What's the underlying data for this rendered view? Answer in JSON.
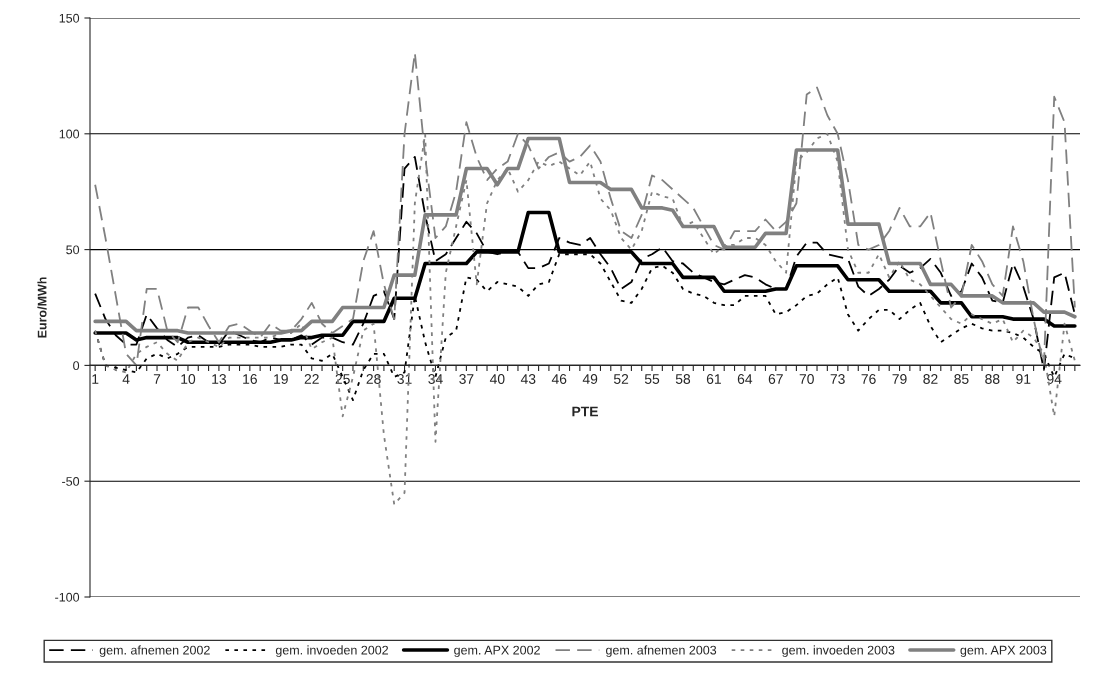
{
  "chart_data": {
    "type": "line",
    "xlabel": "PTE",
    "ylabel": "Euro/MWh",
    "categories": [
      "1",
      null,
      null,
      "4",
      null,
      null,
      "7",
      null,
      null,
      "10",
      null,
      null,
      "13",
      null,
      null,
      "16",
      null,
      null,
      "19",
      null,
      null,
      "22",
      null,
      null,
      "25",
      null,
      null,
      "28",
      null,
      null,
      "31",
      null,
      null,
      "34",
      null,
      null,
      "37",
      null,
      null,
      "40",
      null,
      null,
      "43",
      null,
      null,
      "46",
      null,
      null,
      "49",
      null,
      null,
      "52",
      null,
      null,
      "55",
      null,
      null,
      "58",
      null,
      null,
      "61",
      null,
      null,
      "64",
      null,
      null,
      "67",
      null,
      null,
      "70",
      null,
      null,
      "73",
      null,
      null,
      "76",
      null,
      null,
      "79",
      null,
      null,
      "82",
      null,
      null,
      "85",
      null,
      null,
      "88",
      null,
      null,
      "91",
      null,
      null,
      "94",
      null,
      null
    ],
    "ylim": [
      -100,
      150
    ],
    "yticks": [
      -100,
      -50,
      0,
      50,
      100,
      150
    ],
    "grid": "y",
    "legend": "bottom",
    "marker": "none",
    "series": [
      {
        "name": "gem. afnemen 2002",
        "color": "#000000",
        "line_style": "dashed",
        "values": [
          31,
          20,
          13,
          9,
          9,
          22,
          16,
          11,
          8,
          12,
          13,
          10,
          9,
          15,
          13,
          11,
          10,
          12,
          11,
          11,
          13,
          9,
          12,
          12,
          10,
          9,
          18,
          30,
          32,
          20,
          85,
          90,
          65,
          45,
          48,
          55,
          62,
          57,
          49,
          48,
          49,
          49,
          42,
          42,
          44,
          55,
          53,
          52,
          55,
          48,
          42,
          33,
          36,
          46,
          48,
          51,
          45,
          44,
          40,
          38,
          36,
          35,
          37,
          39,
          38,
          35,
          33,
          33,
          47,
          53,
          53,
          48,
          47,
          46,
          34,
          30,
          33,
          37,
          43,
          40,
          42,
          46,
          40,
          30,
          32,
          44,
          38,
          28,
          27,
          44,
          34,
          20,
          -2,
          38,
          40,
          22
        ]
      },
      {
        "name": "gem. invoeden 2002",
        "color": "#000000",
        "line_style": "dotted",
        "values": [
          15,
          0,
          -1,
          -2,
          -3,
          3,
          5,
          3,
          5,
          8,
          8,
          8,
          8,
          9,
          9,
          9,
          8,
          8,
          8,
          9,
          9,
          3,
          2,
          5,
          -5,
          -15,
          -2,
          5,
          5,
          -5,
          -3,
          30,
          10,
          -5,
          12,
          15,
          38,
          37,
          32,
          36,
          35,
          34,
          30,
          35,
          36,
          48,
          48,
          48,
          48,
          44,
          36,
          28,
          27,
          33,
          42,
          43,
          40,
          33,
          31,
          30,
          27,
          26,
          26,
          30,
          30,
          30,
          22,
          23,
          26,
          30,
          31,
          35,
          38,
          22,
          15,
          20,
          24,
          24,
          20,
          24,
          27,
          17,
          10,
          13,
          16,
          18,
          16,
          15,
          15,
          14,
          12,
          8,
          5,
          -5,
          5,
          3
        ]
      },
      {
        "name": "gem. APX 2002",
        "color": "#000000",
        "line_style": "solid",
        "values": [
          14,
          14,
          14,
          14,
          11,
          12,
          12,
          12,
          12,
          10,
          10,
          10,
          10,
          10,
          10,
          10,
          10,
          10,
          11,
          11,
          12,
          12,
          13,
          13,
          13,
          19,
          19,
          19,
          19,
          29,
          29,
          29,
          44,
          44,
          44,
          44,
          44,
          49,
          49,
          49,
          49,
          49,
          66,
          66,
          66,
          49,
          49,
          49,
          49,
          49,
          49,
          49,
          49,
          44,
          44,
          44,
          44,
          38,
          38,
          38,
          38,
          32,
          32,
          32,
          32,
          32,
          33,
          33,
          43,
          43,
          43,
          43,
          43,
          37,
          37,
          37,
          37,
          32,
          32,
          32,
          32,
          32,
          27,
          27,
          27,
          21,
          21,
          21,
          21,
          20,
          20,
          20,
          20,
          17,
          17,
          17
        ]
      },
      {
        "name": "gem. afnemen 2003",
        "color": "#808080",
        "line_style": "dashed",
        "values": [
          78,
          55,
          30,
          5,
          0,
          33,
          33,
          15,
          10,
          25,
          25,
          17,
          10,
          17,
          18,
          15,
          12,
          18,
          15,
          15,
          20,
          27,
          18,
          14,
          17,
          20,
          45,
          58,
          35,
          20,
          100,
          135,
          90,
          55,
          60,
          75,
          105,
          90,
          80,
          85,
          88,
          100,
          95,
          85,
          90,
          92,
          88,
          90,
          95,
          88,
          72,
          58,
          55,
          65,
          82,
          80,
          76,
          72,
          68,
          60,
          52,
          50,
          58,
          58,
          58,
          63,
          58,
          62,
          70,
          117,
          120,
          108,
          100,
          80,
          52,
          50,
          52,
          58,
          68,
          60,
          60,
          66,
          45,
          25,
          30,
          52,
          45,
          35,
          30,
          60,
          45,
          20,
          0,
          116,
          105,
          25
        ]
      },
      {
        "name": "gem. invoeden 2003",
        "color": "#808080",
        "line_style": "dotted",
        "values": [
          15,
          0,
          -2,
          -3,
          5,
          8,
          10,
          5,
          2,
          10,
          12,
          10,
          8,
          12,
          12,
          12,
          12,
          12,
          14,
          14,
          18,
          7,
          10,
          12,
          -22,
          -5,
          15,
          18,
          -30,
          -60,
          -55,
          70,
          100,
          -33,
          40,
          60,
          80,
          35,
          70,
          80,
          85,
          75,
          80,
          88,
          86,
          88,
          85,
          82,
          88,
          72,
          67,
          55,
          50,
          58,
          75,
          73,
          72,
          60,
          62,
          55,
          48,
          52,
          52,
          55,
          55,
          52,
          45,
          40,
          88,
          92,
          98,
          100,
          88,
          50,
          40,
          40,
          48,
          38,
          45,
          37,
          35,
          30,
          25,
          20,
          18,
          22,
          20,
          18,
          20,
          10,
          15,
          12,
          5,
          -22,
          18,
          2
        ]
      },
      {
        "name": "gem. APX 2003",
        "color": "#808080",
        "line_style": "solid",
        "values": [
          19,
          19,
          19,
          19,
          15,
          15,
          15,
          15,
          15,
          14,
          14,
          14,
          14,
          14,
          14,
          14,
          14,
          14,
          14,
          15,
          15,
          19,
          19,
          19,
          25,
          25,
          25,
          25,
          25,
          39,
          39,
          39,
          65,
          65,
          65,
          65,
          85,
          85,
          85,
          78,
          85,
          85,
          98,
          98,
          98,
          98,
          79,
          79,
          79,
          79,
          76,
          76,
          76,
          68,
          68,
          68,
          67,
          60,
          60,
          60,
          60,
          51,
          51,
          51,
          51,
          57,
          57,
          57,
          93,
          93,
          93,
          93,
          93,
          61,
          61,
          61,
          61,
          44,
          44,
          44,
          44,
          35,
          35,
          35,
          30,
          30,
          30,
          30,
          27,
          27,
          27,
          27,
          23,
          23,
          23,
          21
        ]
      }
    ]
  }
}
